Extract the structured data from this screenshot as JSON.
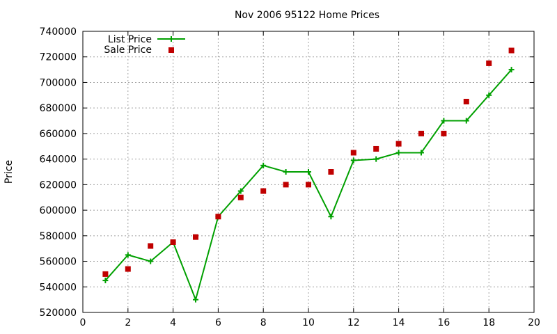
{
  "chart_data": {
    "type": "line",
    "title": "Nov 2006 95122 Home Prices",
    "xlabel": "",
    "ylabel": "Price",
    "xlim": [
      0,
      20
    ],
    "ylim": [
      520000,
      740000
    ],
    "grid": true,
    "legend_position": "top-left",
    "x_ticks": [
      "0",
      "2",
      "4",
      "6",
      "8",
      "10",
      "12",
      "14",
      "16",
      "18",
      "20"
    ],
    "y_ticks": [
      "520000",
      "540000",
      "560000",
      "580000",
      "600000",
      "620000",
      "640000",
      "660000",
      "680000",
      "700000",
      "720000",
      "740000"
    ],
    "series": [
      {
        "name": "List Price",
        "style": "line-with-plus-markers",
        "color": "#00a000",
        "x": [
          1,
          2,
          3,
          4,
          5,
          6,
          7,
          8,
          9,
          10,
          11,
          12,
          13,
          14,
          15,
          16,
          17,
          18,
          19
        ],
        "values": [
          545000,
          565000,
          560000,
          575000,
          530000,
          595000,
          615000,
          635000,
          630000,
          630000,
          595000,
          639000,
          640000,
          645000,
          645000,
          670000,
          670000,
          690000,
          710000
        ]
      },
      {
        "name": "Sale Price",
        "style": "square-markers",
        "color": "#c00000",
        "x": [
          1,
          2,
          3,
          4,
          5,
          6,
          7,
          8,
          9,
          10,
          11,
          12,
          13,
          14,
          15,
          16,
          17,
          18,
          19
        ],
        "values": [
          550000,
          554000,
          572000,
          575000,
          579000,
          595000,
          610000,
          615000,
          620000,
          620000,
          630000,
          645000,
          648000,
          652000,
          660000,
          660000,
          685000,
          715000,
          725000
        ]
      }
    ]
  }
}
